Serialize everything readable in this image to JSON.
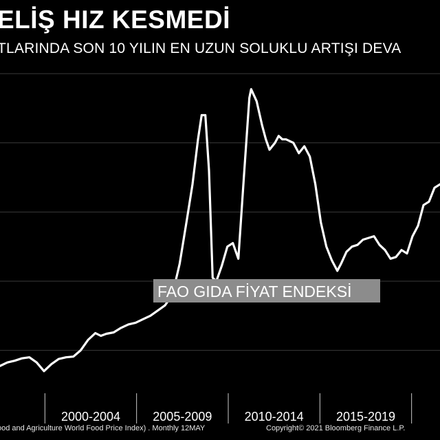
{
  "header": {
    "title": "ELİŞ HIZ KESMEDİ",
    "subtitle": "TLARINDA SON 10 YILIN EN UZUN SOLUKLU ARTIŞI DEVA"
  },
  "footer": {
    "source": "ood and Agriculture World Food Price Index) .  Monthly 12MAY",
    "copyright": "Copyright© 2021 Bloomberg Finance L.P."
  },
  "colors": {
    "background": "#000000",
    "line": "#ffffff",
    "grid": "#3a3a3a",
    "label_box": "#8c8c8c"
  },
  "chart_data": {
    "type": "line",
    "title": "",
    "xlabel": "",
    "ylabel": "",
    "grid": true,
    "x_range": [
      1997.4,
      2021.4
    ],
    "ylim": [
      48,
      143
    ],
    "x_tick_labels": [
      "2000-2004",
      "2005-2009",
      "2010-2014",
      "2015-2019"
    ],
    "series": [
      {
        "name": "FAO GIDA FİYAT ENDEKSİ",
        "x": [
          1997.4,
          1997.8,
          1998.2,
          1998.6,
          1999.0,
          1999.4,
          1999.8,
          2000.2,
          2000.6,
          2001.0,
          2001.4,
          2001.8,
          2002.2,
          2002.6,
          2002.9,
          2003.2,
          2003.6,
          2004.0,
          2004.4,
          2004.8,
          2005.2,
          2005.6,
          2006.0,
          2006.4,
          2006.8,
          2007.2,
          2007.6,
          2007.9,
          2008.2,
          2008.4,
          2008.6,
          2008.8,
          2009.0,
          2009.2,
          2009.5,
          2009.8,
          2010.1,
          2010.4,
          2010.7,
          2011.0,
          2011.1,
          2011.4,
          2011.7,
          2011.9,
          2012.1,
          2012.4,
          2012.6,
          2012.8,
          2013.0,
          2013.4,
          2013.7,
          2014.0,
          2014.3,
          2014.6,
          2014.9,
          2015.2,
          2015.5,
          2015.8,
          2016.0,
          2016.3,
          2016.6,
          2016.9,
          2017.2,
          2017.5,
          2017.8,
          2018.1,
          2018.4,
          2018.7,
          2019.0,
          2019.3,
          2019.6,
          2019.9,
          2020.2,
          2020.5,
          2020.8,
          2021.1,
          2021.4
        ],
        "values": [
          55.5,
          56.5,
          57.0,
          57.7,
          58.0,
          56.5,
          54.0,
          56.0,
          57.5,
          58.0,
          58.2,
          60.0,
          63.0,
          65.0,
          64.2,
          64.8,
          65.2,
          66.5,
          67.5,
          68.0,
          69.0,
          70.0,
          71.5,
          73.0,
          76.0,
          85.0,
          98.0,
          108.0,
          121.0,
          128.0,
          128.0,
          112.0,
          81.0,
          80.0,
          84.5,
          90.0,
          91.0,
          86.5,
          110.0,
          133.0,
          135.5,
          132.0,
          125.0,
          121.0,
          118.0,
          120.0,
          122.0,
          121.0,
          121.0,
          120.0,
          117.0,
          119.0,
          116.0,
          108.0,
          97.0,
          90.0,
          86.0,
          83.0,
          85.0,
          88.5,
          90.0,
          90.5,
          92.0,
          92.5,
          93.0,
          90.5,
          89.0,
          86.5,
          87.0,
          89.0,
          88.0,
          93.0,
          96.0,
          102.0,
          103.0,
          107.0,
          108.0
        ]
      }
    ]
  }
}
